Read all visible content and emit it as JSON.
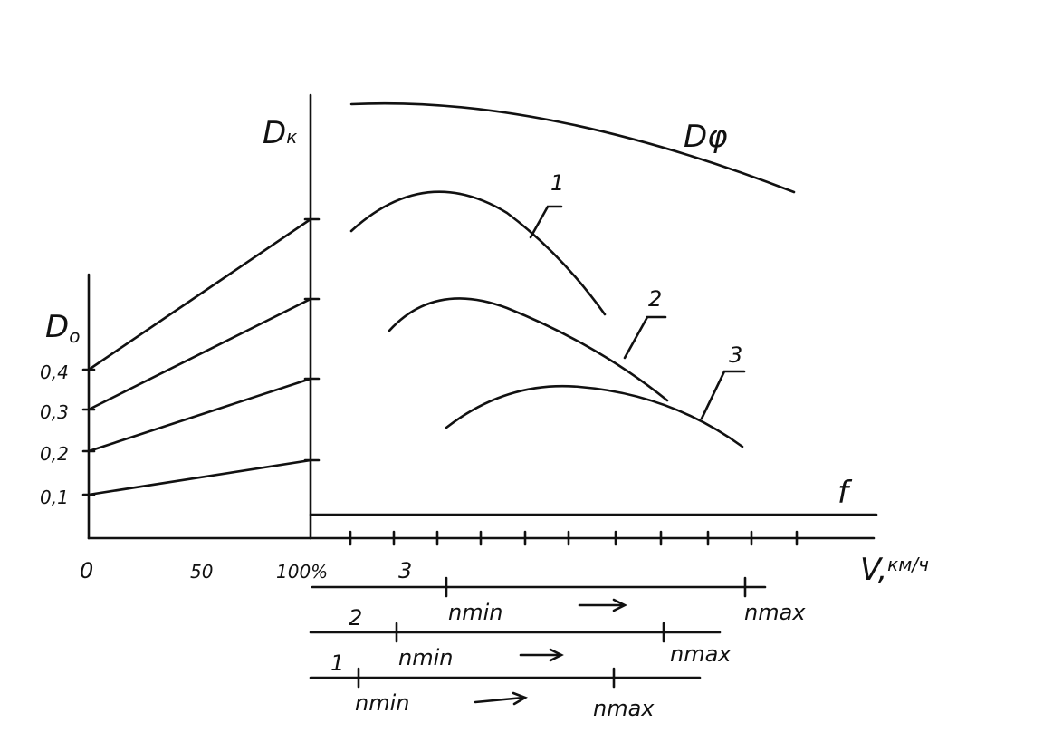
{
  "axes": {
    "left_label": {
      "symbol": "D",
      "subscript": "o"
    },
    "left_ticks": [
      "0,4",
      "0,3",
      "0,2",
      "0,1"
    ],
    "bottom_ticks": [
      "0",
      "50",
      "100%"
    ],
    "right_label": {
      "symbol": "D",
      "subscript": "к"
    },
    "speed_label": {
      "symbol": "V,",
      "unit": "км/ч"
    }
  },
  "curves": [
    {
      "label": "Dφ"
    },
    {
      "label": "1"
    },
    {
      "label": "2"
    },
    {
      "label": "3"
    },
    {
      "label": "f"
    }
  ],
  "ranges": [
    {
      "gear": "3",
      "min": "nmin",
      "max": "nmax"
    },
    {
      "gear": "2",
      "min": "nmin",
      "max": "nmax"
    },
    {
      "gear": "1",
      "min": "nmin",
      "max": "nmax"
    }
  ]
}
